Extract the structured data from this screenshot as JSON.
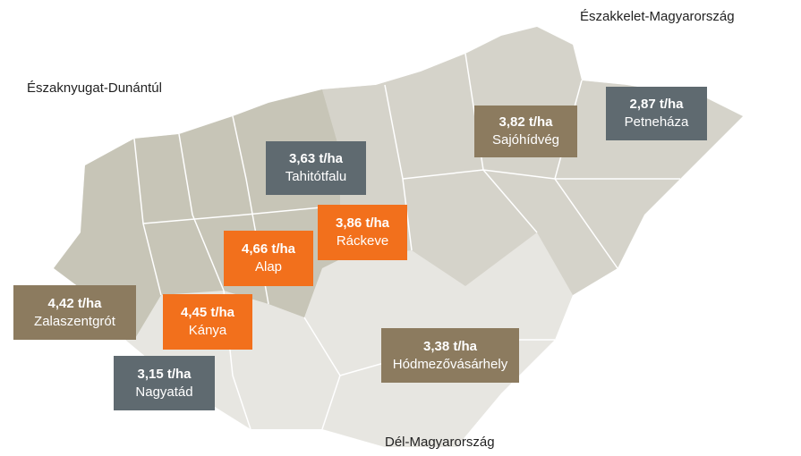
{
  "regions": [
    "Északnyugat-Dunántúl",
    "Északkelet-Magyarország",
    "Dél-Magyarország"
  ],
  "sites": [
    {
      "yield": "3,63 t/ha",
      "name": "Tahitótfalu",
      "color": "slate"
    },
    {
      "yield": "3,82 t/ha",
      "name": "Sajóhídvég",
      "color": "brown"
    },
    {
      "yield": "2,87 t/ha",
      "name": "Petneháza",
      "color": "slate"
    },
    {
      "yield": "3,86 t/ha",
      "name": "Ráckeve",
      "color": "orange"
    },
    {
      "yield": "4,66 t/ha",
      "name": "Alap",
      "color": "orange"
    },
    {
      "yield": "4,42 t/ha",
      "name": "Zalaszentgrót",
      "color": "brown"
    },
    {
      "yield": "4,45 t/ha",
      "name": "Kánya",
      "color": "orange"
    },
    {
      "yield": "3,15 t/ha",
      "name": "Nagyatád",
      "color": "slate"
    },
    {
      "yield": "3,38 t/ha",
      "name": "Hódmezővásárhely",
      "color": "brown"
    }
  ]
}
